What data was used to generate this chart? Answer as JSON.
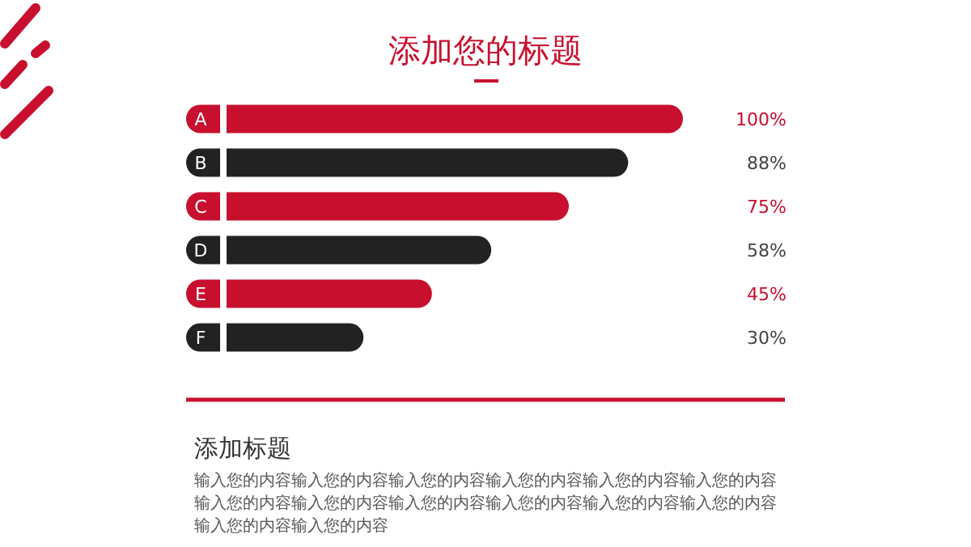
{
  "chart_data": {
    "type": "bar",
    "orientation": "horizontal",
    "title": "添加您的标题",
    "categories": [
      "A",
      "B",
      "C",
      "D",
      "E",
      "F"
    ],
    "values": [
      100,
      88,
      75,
      58,
      45,
      30
    ],
    "colors": [
      "#c8102e",
      "#222222",
      "#c8102e",
      "#222222",
      "#c8102e",
      "#222222"
    ],
    "value_labels": [
      "100%",
      "88%",
      "75%",
      "58%",
      "45%",
      "30%"
    ],
    "annotations": [
      "添加标题",
      "输入您的内容输入您的内容输入您的内容输入您的内容输入您的内容输入您的内容输入您的内容输入您的内容输入您的内容输入您的内容输入您的内容输入您的内容输入您的内容输入您的内容"
    ]
  }
}
